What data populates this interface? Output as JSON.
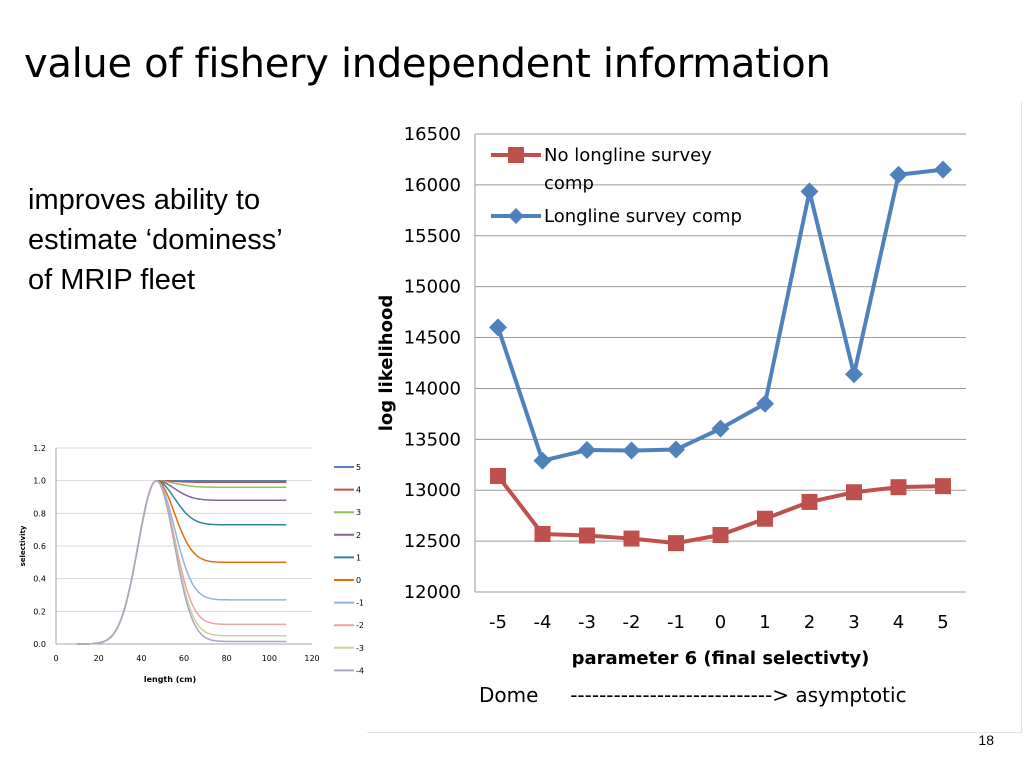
{
  "slide": {
    "title": "value of fishery independent information",
    "bullet_lines": [
      "improves ability to",
      "estimate ‘dominess’",
      "of MRIP fleet"
    ],
    "page_number": "18"
  },
  "chart_data": [
    {
      "type": "line",
      "title": "",
      "xlabel": "parameter 6 (final selectivty)",
      "ylabel": "log likelihood",
      "caption": "Dome     ----------------------------> asymptotic",
      "x": [
        -5,
        -4,
        -3,
        -2,
        -1,
        0,
        1,
        2,
        3,
        4,
        5
      ],
      "xticks": [
        "-5",
        "-4",
        "-3",
        "-2",
        "-1",
        "0",
        "1",
        "2",
        "3",
        "4",
        "5"
      ],
      "ylim": [
        12000,
        16500
      ],
      "yticks": [
        "12000",
        "12500",
        "13000",
        "13500",
        "14000",
        "14500",
        "15000",
        "15500",
        "16000",
        "16500"
      ],
      "grid": true,
      "legend_position": "top-left",
      "series": [
        {
          "name": "No longline survey comp",
          "legend_lines": [
            "No longline survey",
            "comp"
          ],
          "color": "#c0504d",
          "marker": "square",
          "values": [
            13140,
            12570,
            12555,
            12525,
            12480,
            12560,
            12720,
            12885,
            12980,
            13030,
            13040
          ]
        },
        {
          "name": "Longline survey comp",
          "legend_lines": [
            "Longline survey comp"
          ],
          "color": "#4f81bd",
          "marker": "diamond",
          "values": [
            14600,
            13290,
            13395,
            13390,
            13400,
            13605,
            13850,
            15935,
            14140,
            16100,
            16150
          ]
        }
      ]
    },
    {
      "type": "line",
      "title": "",
      "xlabel": "length (cm)",
      "ylabel": "selectivity",
      "xlim": [
        0,
        120
      ],
      "ylim": [
        0,
        1.2
      ],
      "xticks": [
        "0",
        "20",
        "40",
        "60",
        "80",
        "100",
        "120"
      ],
      "yticks": [
        "0.0",
        "0.2",
        "0.4",
        "0.6",
        "0.8",
        "1.0",
        "1.2"
      ],
      "grid": true,
      "legend_position": "right",
      "curve": {
        "x_start": 10,
        "x_end": 108,
        "peak_x": 47,
        "ascending_width": 12,
        "descending_width": 12
      },
      "series": [
        {
          "name": "5",
          "color": "#4f81bd",
          "final_level": 1.0
        },
        {
          "name": "4",
          "color": "#c0504d",
          "final_level": 0.99
        },
        {
          "name": "3",
          "color": "#9bbb59",
          "final_level": 0.96
        },
        {
          "name": "2",
          "color": "#8064a2",
          "final_level": 0.88
        },
        {
          "name": "1",
          "color": "#31859c",
          "final_level": 0.73
        },
        {
          "name": "0",
          "color": "#e46c0a",
          "final_level": 0.5
        },
        {
          "name": "-1",
          "color": "#95b3d7",
          "final_level": 0.27
        },
        {
          "name": "-2",
          "color": "#e6a6a4",
          "final_level": 0.12
        },
        {
          "name": "-3",
          "color": "#c3d69b",
          "final_level": 0.05
        },
        {
          "name": "-4",
          "color": "#b3a2c7",
          "final_level": 0.015
        }
      ]
    }
  ]
}
